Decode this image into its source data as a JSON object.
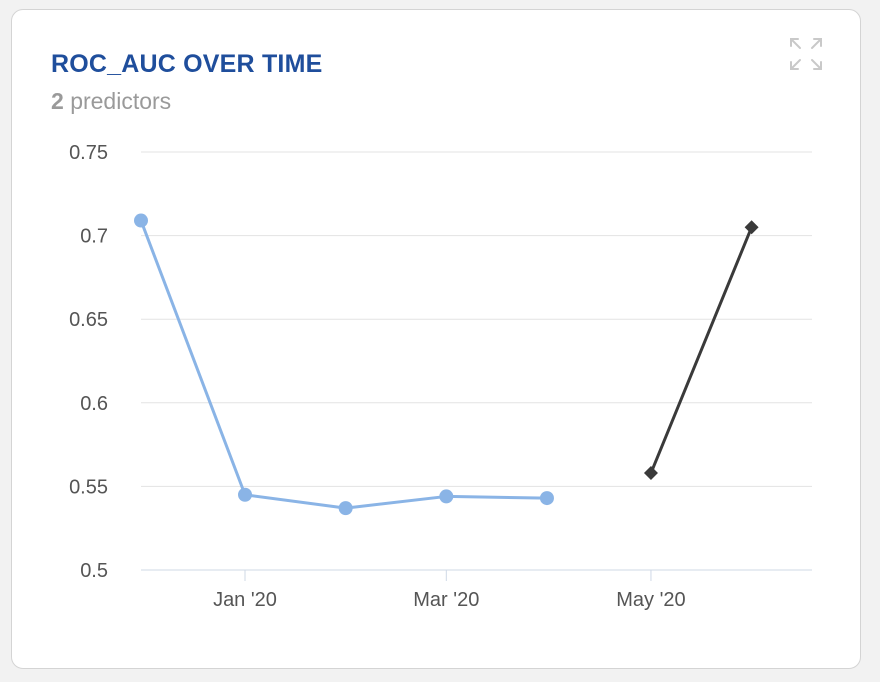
{
  "card": {
    "title": "ROC_AUC OVER TIME",
    "predictor_count": "2",
    "predictor_label": "predictors",
    "expand_icon": "expand-icon"
  },
  "colors": {
    "title": "#1f4e9c",
    "series_1": "#8ab4e6",
    "series_2": "#3a3a3a",
    "grid": "#e3e3e3"
  },
  "chart_data": {
    "type": "line",
    "title": "ROC_AUC OVER TIME",
    "xlabel": "",
    "ylabel": "",
    "x_range": [
      "2019-12-01",
      "2020-06-18"
    ],
    "ylim": [
      0.5,
      0.75
    ],
    "y_ticks": [
      0.5,
      0.55,
      0.6,
      0.65,
      0.7,
      0.75
    ],
    "y_tick_labels": [
      "0.5",
      "0.55",
      "0.6",
      "0.65",
      "0.7",
      "0.75"
    ],
    "x_ticks": [
      "2020-01-01",
      "2020-03-01",
      "2020-05-01"
    ],
    "x_tick_labels": [
      "Jan '20",
      "Mar '20",
      "May '20"
    ],
    "grid": true,
    "series": [
      {
        "marker": "circle",
        "color": "#8ab4e6",
        "points": [
          {
            "x": "2019-12-01",
            "y": 0.709
          },
          {
            "x": "2020-01-01",
            "y": 0.545
          },
          {
            "x": "2020-01-31",
            "y": 0.537
          },
          {
            "x": "2020-03-01",
            "y": 0.544
          },
          {
            "x": "2020-03-31",
            "y": 0.543
          }
        ]
      },
      {
        "marker": "diamond",
        "color": "#3a3a3a",
        "points": [
          {
            "x": "2020-05-01",
            "y": 0.558
          },
          {
            "x": "2020-05-31",
            "y": 0.705
          }
        ]
      }
    ]
  }
}
